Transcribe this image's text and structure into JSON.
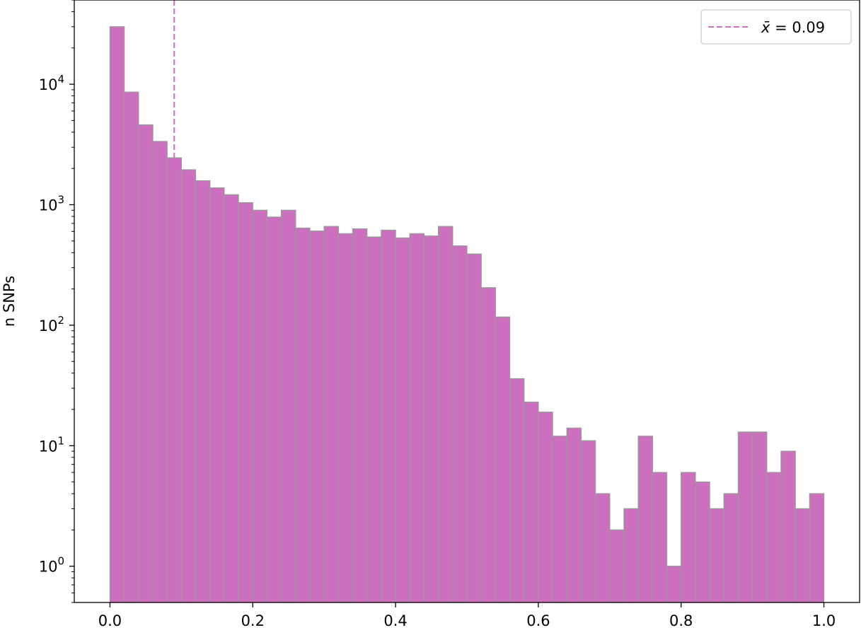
{
  "chart_data": {
    "type": "bar",
    "histogram": true,
    "yscale": "log",
    "ylabel": "n SNPs",
    "xlabel": "",
    "xlim": [
      -0.05,
      1.05
    ],
    "ylim": [
      0.5,
      50000
    ],
    "xticks": [
      {
        "value": 0.0,
        "label": "0.0"
      },
      {
        "value": 0.2,
        "label": "0.2"
      },
      {
        "value": 0.4,
        "label": "0.4"
      },
      {
        "value": 0.6,
        "label": "0.6"
      },
      {
        "value": 0.8,
        "label": "0.8"
      },
      {
        "value": 1.0,
        "label": "1.0"
      }
    ],
    "yticks": [
      {
        "value": 1,
        "base": "10",
        "exp": "0"
      },
      {
        "value": 10,
        "base": "10",
        "exp": "1"
      },
      {
        "value": 100,
        "base": "10",
        "exp": "2"
      },
      {
        "value": 1000,
        "base": "10",
        "exp": "3"
      },
      {
        "value": 10000,
        "base": "10",
        "exp": "4"
      }
    ],
    "bin_edges": [
      0.0,
      0.02,
      0.04,
      0.06,
      0.08,
      0.1,
      0.12,
      0.14,
      0.16,
      0.18,
      0.2,
      0.22,
      0.24,
      0.26,
      0.28,
      0.3,
      0.32,
      0.34,
      0.36,
      0.38,
      0.4,
      0.42,
      0.44,
      0.46,
      0.48,
      0.5,
      0.52,
      0.54,
      0.56,
      0.58,
      0.6,
      0.62,
      0.64,
      0.66,
      0.68,
      0.7,
      0.72,
      0.74,
      0.76,
      0.78,
      0.8,
      0.82,
      0.84,
      0.86,
      0.88,
      0.9,
      0.92,
      0.94,
      0.96,
      0.98,
      1.0
    ],
    "values": [
      30000,
      8600,
      4600,
      3350,
      2450,
      1950,
      1580,
      1380,
      1210,
      1040,
      900,
      790,
      900,
      640,
      605,
      660,
      575,
      630,
      540,
      615,
      530,
      575,
      550,
      660,
      455,
      390,
      205,
      117,
      36,
      23,
      19,
      12,
      14,
      11,
      4,
      2,
      3,
      12,
      6,
      1,
      6,
      5,
      3,
      4,
      13,
      13,
      6,
      9,
      3,
      4
    ],
    "bar_color": "#cc6fbf",
    "bar_edge_color": "#999999",
    "mean_line": {
      "x": 0.09,
      "color": "#cc6fbf",
      "style": "dashed"
    },
    "legend": {
      "position": "top-right",
      "entries": [
        {
          "symbol": "x̄",
          "text": " = 0.09"
        }
      ]
    }
  }
}
